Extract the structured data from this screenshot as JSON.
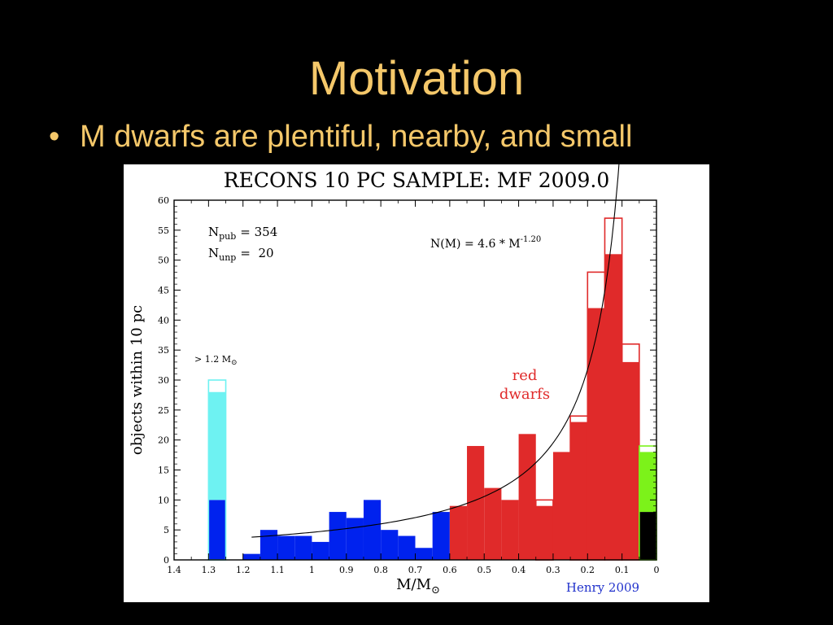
{
  "slide": {
    "title": "Motivation",
    "bullet_marker": "•",
    "bullet": "M dwarfs are plentiful, nearby, and small"
  },
  "chart_data": {
    "type": "bar",
    "title": "RECONS 10 PC SAMPLE: MF 2009.0",
    "xlabel": "M/M",
    "xlabel_symbol": "⊙",
    "ylabel": "objects within 10 pc",
    "xlim": [
      1.4,
      0
    ],
    "ylim": [
      0,
      60
    ],
    "x_reversed": true,
    "x_ticks": [
      "1.4",
      "1.3",
      "1.2",
      "1.1",
      "1",
      "0.9",
      "0.8",
      "0.7",
      "0.6",
      "0.5",
      "0.4",
      "0.3",
      "0.2",
      "0.1",
      "0"
    ],
    "y_ticks": [
      "0",
      "5",
      "10",
      "15",
      "20",
      "25",
      "30",
      "35",
      "40",
      "45",
      "50",
      "55",
      "60"
    ],
    "colors": {
      "blue": "#0022ee",
      "red": "#e02a2a",
      "cyan": "#6ef2f2",
      "green": "#7cf21a",
      "black": "#000000",
      "credit": "#2233cc"
    },
    "high_mass_bin": {
      "label": "> 1.2 M",
      "label_symbol": "⊙",
      "x_left": 1.3,
      "x_right": 1.25,
      "blue": 10,
      "cyan_top": 28,
      "total": 30
    },
    "bins": [
      {
        "x_left": 1.2,
        "x_right": 1.15,
        "pub": 1,
        "total": 1,
        "color": "blue"
      },
      {
        "x_left": 1.15,
        "x_right": 1.1,
        "pub": 5,
        "total": 5,
        "color": "blue"
      },
      {
        "x_left": 1.1,
        "x_right": 1.05,
        "pub": 4,
        "total": 4,
        "color": "blue"
      },
      {
        "x_left": 1.05,
        "x_right": 1.0,
        "pub": 4,
        "total": 4,
        "color": "blue"
      },
      {
        "x_left": 1.0,
        "x_right": 0.95,
        "pub": 3,
        "total": 3,
        "color": "blue"
      },
      {
        "x_left": 0.95,
        "x_right": 0.9,
        "pub": 8,
        "total": 8,
        "color": "blue"
      },
      {
        "x_left": 0.9,
        "x_right": 0.85,
        "pub": 7,
        "total": 7,
        "color": "blue"
      },
      {
        "x_left": 0.85,
        "x_right": 0.8,
        "pub": 10,
        "total": 10,
        "color": "blue"
      },
      {
        "x_left": 0.8,
        "x_right": 0.75,
        "pub": 5,
        "total": 5,
        "color": "blue"
      },
      {
        "x_left": 0.75,
        "x_right": 0.7,
        "pub": 4,
        "total": 4,
        "color": "blue"
      },
      {
        "x_left": 0.7,
        "x_right": 0.65,
        "pub": 2,
        "total": 2,
        "color": "blue"
      },
      {
        "x_left": 0.65,
        "x_right": 0.6,
        "pub": 8,
        "total": 8,
        "color": "blue"
      },
      {
        "x_left": 0.6,
        "x_right": 0.55,
        "pub": 9,
        "total": 9,
        "color": "red"
      },
      {
        "x_left": 0.55,
        "x_right": 0.5,
        "pub": 19,
        "total": 19,
        "color": "red"
      },
      {
        "x_left": 0.5,
        "x_right": 0.45,
        "pub": 12,
        "total": 12,
        "color": "red"
      },
      {
        "x_left": 0.45,
        "x_right": 0.4,
        "pub": 10,
        "total": 10,
        "color": "red"
      },
      {
        "x_left": 0.4,
        "x_right": 0.35,
        "pub": 21,
        "total": 21,
        "color": "red"
      },
      {
        "x_left": 0.35,
        "x_right": 0.3,
        "pub": 9,
        "total": 10,
        "color": "red"
      },
      {
        "x_left": 0.3,
        "x_right": 0.25,
        "pub": 18,
        "total": 18,
        "color": "red"
      },
      {
        "x_left": 0.25,
        "x_right": 0.2,
        "pub": 23,
        "total": 24,
        "color": "red"
      },
      {
        "x_left": 0.2,
        "x_right": 0.15,
        "pub": 42,
        "total": 48,
        "color": "red"
      },
      {
        "x_left": 0.15,
        "x_right": 0.1,
        "pub": 51,
        "total": 57,
        "color": "red"
      },
      {
        "x_left": 0.1,
        "x_right": 0.05,
        "pub": 33,
        "total": 36,
        "color": "red"
      }
    ],
    "end_bin": {
      "x_left": 0.05,
      "x_right": 0.0,
      "black": 8,
      "green_top": 18,
      "total": 19
    },
    "fit_curve": {
      "equation": "N(M) = 4.6 * M",
      "exponent": "-1.20",
      "coefficient": 4.6,
      "power": -1.2,
      "x_start": 1.175,
      "x_end": 0.075
    },
    "annotations": {
      "n_pub_label": "N",
      "n_pub_sub": "pub",
      "n_pub_value": "= 354",
      "n_unp_label": "N",
      "n_unp_sub": "unp",
      "n_unp_value": "=  20",
      "red_dwarfs_line1": "red",
      "red_dwarfs_line2": "dwarfs",
      "credit": "Henry 2009"
    }
  }
}
